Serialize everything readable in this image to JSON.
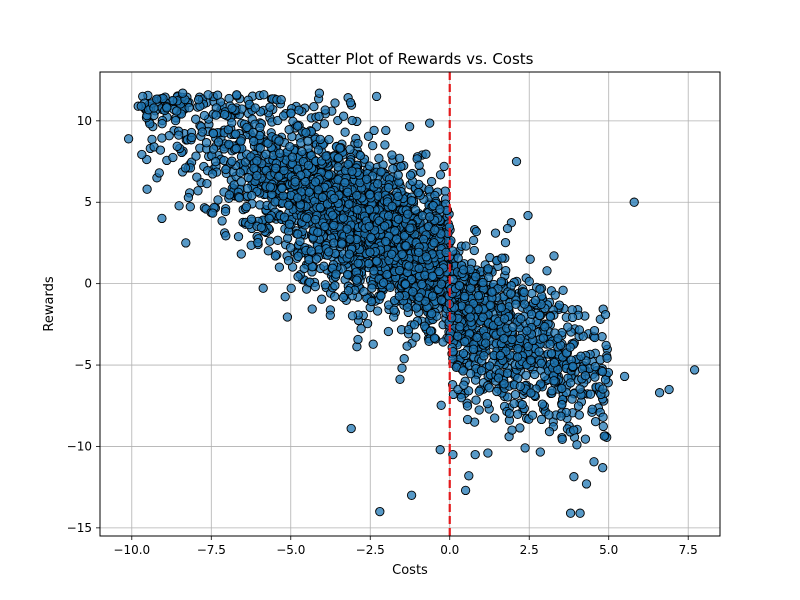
{
  "chart_data": {
    "type": "scatter",
    "title": "Scatter Plot of Rewards vs. Costs",
    "xlabel": "Costs",
    "ylabel": "Rewards",
    "xlim": [
      -11.0,
      8.5
    ],
    "ylim": [
      -15.5,
      13.0
    ],
    "xticks": [
      -10.0,
      -7.5,
      -5.0,
      -2.5,
      0.0,
      2.5,
      5.0,
      7.5
    ],
    "xtick_labels": [
      "−10.0",
      "−7.5",
      "−5.0",
      "−2.5",
      "0.0",
      "2.5",
      "5.0",
      "7.5"
    ],
    "yticks": [
      -15,
      -10,
      -5,
      0,
      5,
      10
    ],
    "ytick_labels": [
      "−15",
      "−10",
      "−5",
      "0",
      "5",
      "10"
    ],
    "grid": true,
    "vline": {
      "x": 0.0,
      "style": "dashed",
      "color": "#e41a1c"
    },
    "marker_color": "#1f77b4",
    "marker_edge": "#000000",
    "sampled_points": {
      "note": "dense cloud approximated; representative and outlier points listed",
      "x": [
        -10.1,
        -9.8,
        -9.7,
        -9.3,
        -9.1,
        -8.9,
        -8.4,
        -8.3,
        -7.9,
        -7.6,
        -6.7,
        -5.3,
        -4.1,
        -2.3,
        -2.2,
        -1.2,
        -3.1,
        0.5,
        0.6,
        2.1,
        3.8,
        4.1,
        4.3,
        5.5,
        5.8,
        6.6,
        6.9,
        7.7,
        4.9,
        4.8,
        3.9,
        4.0,
        0.8,
        1.2,
        -0.3,
        0.1
      ],
      "y": [
        8.9,
        10.9,
        10.9,
        8.4,
        8.2,
        10.8,
        11.7,
        2.5,
        11.3,
        11.6,
        11.6,
        11.3,
        11.7,
        11.5,
        -14.0,
        -13.0,
        -8.9,
        -12.7,
        -11.8,
        7.5,
        -14.1,
        -14.1,
        -12.3,
        -5.7,
        5.0,
        -6.7,
        -6.5,
        -5.3,
        -1.9,
        -5.4,
        -9.0,
        -9.9,
        -10.5,
        -10.4,
        -10.2,
        -10.5
      ]
    },
    "cloud": {
      "count": 3200,
      "x_mean": -1.8,
      "x_sd": 3.2,
      "slope": -1.05,
      "intercept": -0.2,
      "noise_sd": 2.4
    }
  }
}
